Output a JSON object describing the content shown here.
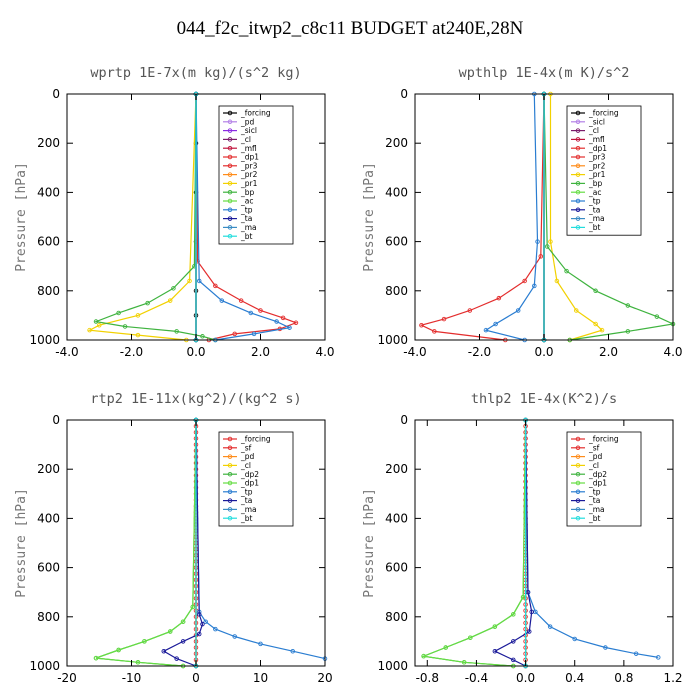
{
  "title": "044_f2c_itwp2_c8c11  BUDGET at240E,28N",
  "colors": {
    "black": "#000000",
    "violet": "#b380e6",
    "purple": "#8a2be2",
    "darkpurple": "#7b1d6b",
    "crimson": "#c0143c",
    "red": "#e32d2d",
    "orange": "#ff8c1a",
    "yellow": "#f2d100",
    "green": "#3fb33f",
    "lime": "#66dd44",
    "blue": "#2a7dd1",
    "navy": "#1a1a99",
    "steel": "#3a8cc4",
    "cyan": "#22dddd"
  },
  "chart_data": [
    {
      "type": "line",
      "title": "wprtp  1E-7x(m kg)/(s^2 kg)",
      "ylabel": "Pressure [hPa]",
      "xlim": [
        -4.0,
        4.0
      ],
      "ylim": [
        1000,
        0
      ],
      "xticks": [
        -4.0,
        -2.0,
        0.0,
        2.0,
        4.0
      ],
      "xtick_labels": [
        "-4.0",
        "-2.0",
        "0.0",
        "2.0",
        "4.0"
      ],
      "yticks": [
        0,
        200,
        400,
        600,
        800,
        1000
      ],
      "ytick_labels": [
        "0",
        "200",
        "400",
        "600",
        "800",
        "1000"
      ],
      "legend_position": "upper-right",
      "series": [
        {
          "name": "_forcing",
          "color": "black",
          "x": [
            0,
            0,
            0,
            0,
            0,
            0,
            0
          ],
          "y": [
            0,
            200,
            400,
            600,
            800,
            900,
            1000
          ]
        },
        {
          "name": "_pd",
          "color": "violet",
          "x": [
            0,
            0
          ],
          "y": [
            0,
            1000
          ]
        },
        {
          "name": "_sicl",
          "color": "purple",
          "x": [
            0,
            0
          ],
          "y": [
            0,
            1000
          ]
        },
        {
          "name": "_cl",
          "color": "darkpurple",
          "x": [
            0,
            0
          ],
          "y": [
            0,
            1000
          ]
        },
        {
          "name": "_mfl",
          "color": "crimson",
          "x": [
            0,
            0
          ],
          "y": [
            0,
            1000
          ]
        },
        {
          "name": "_dp1",
          "color": "red",
          "x": [
            0,
            0.05,
            0.6,
            1.4,
            2.0,
            2.7,
            3.1,
            2.6,
            1.2,
            0.4
          ],
          "y": [
            0,
            680,
            780,
            840,
            880,
            910,
            930,
            955,
            975,
            1000
          ]
        },
        {
          "name": "_pr3",
          "color": "red",
          "x": [
            0,
            0
          ],
          "y": [
            0,
            1000
          ]
        },
        {
          "name": "_pr2",
          "color": "orange",
          "x": [
            0,
            0
          ],
          "y": [
            0,
            1000
          ]
        },
        {
          "name": "_pr1",
          "color": "yellow",
          "x": [
            0,
            -0.2,
            -0.8,
            -1.8,
            -3.0,
            -3.3,
            -1.8,
            -0.3
          ],
          "y": [
            0,
            760,
            840,
            900,
            940,
            960,
            980,
            1000
          ]
        },
        {
          "name": "_bp",
          "color": "green",
          "x": [
            0,
            -0.05,
            -0.7,
            -1.5,
            -2.4,
            -3.1,
            -2.2,
            -0.6,
            0.2,
            0.6
          ],
          "y": [
            0,
            700,
            790,
            850,
            890,
            925,
            945,
            965,
            985,
            1000
          ]
        },
        {
          "name": "_ac",
          "color": "lime",
          "x": [
            0,
            0
          ],
          "y": [
            0,
            1000
          ]
        },
        {
          "name": "_tp",
          "color": "blue",
          "x": [
            0,
            0.1,
            0.8,
            1.7,
            2.5,
            2.9,
            1.8,
            0.6
          ],
          "y": [
            0,
            760,
            840,
            890,
            925,
            950,
            975,
            1000
          ]
        },
        {
          "name": "_ta",
          "color": "navy",
          "x": [
            0,
            0
          ],
          "y": [
            0,
            1000
          ]
        },
        {
          "name": "_ma",
          "color": "steel",
          "x": [
            0,
            0
          ],
          "y": [
            0,
            1000
          ]
        },
        {
          "name": "_bt",
          "color": "cyan",
          "x": [
            0,
            0
          ],
          "y": [
            0,
            1000
          ]
        }
      ]
    },
    {
      "type": "line",
      "title": "wpthlp  1E-4x(m K)/s^2",
      "ylabel": "Pressure [hPa]",
      "xlim": [
        -4.0,
        4.0
      ],
      "ylim": [
        1000,
        0
      ],
      "xticks": [
        -4.0,
        -2.0,
        0.0,
        2.0,
        4.0
      ],
      "xtick_labels": [
        "-4.0",
        "-2.0",
        "0.0",
        "2.0",
        "4.0"
      ],
      "yticks": [
        0,
        200,
        400,
        600,
        800,
        1000
      ],
      "ytick_labels": [
        "0",
        "200",
        "400",
        "600",
        "800",
        "1000"
      ],
      "legend_position": "upper-right",
      "series": [
        {
          "name": "_forcing",
          "color": "black",
          "x": [
            0,
            0
          ],
          "y": [
            0,
            1000
          ]
        },
        {
          "name": "_sicl",
          "color": "violet",
          "x": [
            0,
            0
          ],
          "y": [
            0,
            1000
          ]
        },
        {
          "name": "_cl",
          "color": "darkpurple",
          "x": [
            0,
            0
          ],
          "y": [
            0,
            1000
          ]
        },
        {
          "name": "_mfl",
          "color": "crimson",
          "x": [
            0,
            0
          ],
          "y": [
            0,
            1000
          ]
        },
        {
          "name": "_dp1",
          "color": "red",
          "x": [
            0,
            -0.1,
            -0.6,
            -1.4,
            -2.3,
            -3.1,
            -3.8,
            -3.4,
            -1.2
          ],
          "y": [
            0,
            660,
            760,
            830,
            880,
            915,
            940,
            965,
            1000
          ]
        },
        {
          "name": "_pr3",
          "color": "red",
          "x": [
            0,
            0
          ],
          "y": [
            0,
            1000
          ]
        },
        {
          "name": "_pr2",
          "color": "orange",
          "x": [
            0,
            0
          ],
          "y": [
            0,
            1000
          ]
        },
        {
          "name": "_pr1",
          "color": "yellow",
          "x": [
            0.2,
            0.2,
            0.4,
            1.0,
            1.6,
            1.8,
            0.8
          ],
          "y": [
            0,
            600,
            760,
            880,
            935,
            960,
            1000
          ]
        },
        {
          "name": "_bp",
          "color": "green",
          "x": [
            0,
            0.1,
            0.7,
            1.6,
            2.6,
            3.5,
            4.0,
            2.6,
            0.8
          ],
          "y": [
            0,
            620,
            720,
            800,
            860,
            905,
            935,
            965,
            1000
          ]
        },
        {
          "name": "_ac",
          "color": "lime",
          "x": [
            0,
            0
          ],
          "y": [
            0,
            1000
          ]
        },
        {
          "name": "_tp",
          "color": "blue",
          "x": [
            -0.3,
            -0.2,
            -0.3,
            -0.8,
            -1.5,
            -1.8,
            -0.6
          ],
          "y": [
            0,
            600,
            780,
            880,
            935,
            960,
            1000
          ]
        },
        {
          "name": "_ta",
          "color": "navy",
          "x": [
            0,
            0
          ],
          "y": [
            0,
            1000
          ]
        },
        {
          "name": "_ma",
          "color": "steel",
          "x": [
            0,
            0
          ],
          "y": [
            0,
            1000
          ]
        },
        {
          "name": "_bt",
          "color": "cyan",
          "x": [
            0,
            0
          ],
          "y": [
            0,
            1000
          ]
        }
      ]
    },
    {
      "type": "line",
      "title": "rtp2  1E-11x(kg^2)/(kg^2 s)",
      "ylabel": "Pressure [hPa]",
      "xlim": [
        -20,
        20
      ],
      "ylim": [
        1000,
        0
      ],
      "xticks": [
        -20,
        -10,
        0,
        10,
        20
      ],
      "xtick_labels": [
        "-20",
        "-10",
        "0",
        "10",
        "20"
      ],
      "yticks": [
        0,
        200,
        400,
        600,
        800,
        1000
      ],
      "ytick_labels": [
        "0",
        "200",
        "400",
        "600",
        "800",
        "1000"
      ],
      "legend_position": "upper-right",
      "series": [
        {
          "name": "_forcing",
          "color": "red",
          "x": [
            0,
            0
          ],
          "y": [
            0,
            1000
          ]
        },
        {
          "name": "_sf",
          "color": "red",
          "x": [
            0,
            0,
            0,
            0,
            0,
            0,
            0,
            0,
            0,
            0,
            0,
            0,
            0,
            0,
            0,
            0,
            0,
            0,
            0,
            0,
            0,
            0,
            0,
            0,
            0,
            0,
            0,
            0,
            0,
            0,
            0,
            0,
            0,
            0,
            0,
            0,
            0,
            0,
            0,
            0,
            0
          ],
          "y": [
            0,
            25,
            50,
            75,
            100,
            125,
            150,
            175,
            200,
            225,
            250,
            275,
            300,
            325,
            350,
            375,
            400,
            425,
            450,
            475,
            500,
            525,
            550,
            575,
            600,
            625,
            650,
            675,
            700,
            725,
            750,
            775,
            800,
            825,
            850,
            875,
            900,
            925,
            950,
            975,
            1000
          ]
        },
        {
          "name": "_pd",
          "color": "orange",
          "x": [
            0,
            0
          ],
          "y": [
            0,
            1000
          ]
        },
        {
          "name": "_cl",
          "color": "yellow",
          "x": [
            0,
            0
          ],
          "y": [
            0,
            1000
          ]
        },
        {
          "name": "_dp2",
          "color": "green",
          "x": [
            0,
            -0.5,
            -2,
            -4,
            -8,
            -12,
            -15.5,
            -9,
            -2
          ],
          "y": [
            0,
            760,
            820,
            860,
            900,
            935,
            968,
            985,
            1000
          ]
        },
        {
          "name": "_dp1",
          "color": "lime",
          "x": [
            0,
            -0.5,
            -2,
            -4,
            -8,
            -12,
            -15.5,
            -9,
            -2
          ],
          "y": [
            0,
            760,
            820,
            860,
            900,
            935,
            968,
            985,
            1000
          ]
        },
        {
          "name": "_tp",
          "color": "blue",
          "x": [
            0,
            0.5,
            1.5,
            3,
            6,
            10,
            15,
            20
          ],
          "y": [
            0,
            780,
            820,
            850,
            880,
            910,
            940,
            970
          ]
        },
        {
          "name": "_ta",
          "color": "navy",
          "x": [
            0,
            0.5,
            1.0,
            0.5,
            -2,
            -5,
            -3,
            0
          ],
          "y": [
            0,
            790,
            830,
            870,
            900,
            940,
            970,
            1000
          ]
        },
        {
          "name": "_ma",
          "color": "steel",
          "x": [
            0,
            0
          ],
          "y": [
            0,
            1000
          ]
        },
        {
          "name": "_bt",
          "color": "cyan",
          "x": [
            0,
            0
          ],
          "y": [
            0,
            1000
          ]
        }
      ]
    },
    {
      "type": "line",
      "title": "thlp2  1E-4x(K^2)/s",
      "ylabel": "Pressure [hPa]",
      "xlim": [
        -0.9,
        1.2
      ],
      "ylim": [
        1000,
        0
      ],
      "xticks": [
        -0.8,
        -0.4,
        0.0,
        0.4,
        0.8,
        1.2
      ],
      "xtick_labels": [
        "-0.8",
        "-0.4",
        "0.0",
        "0.4",
        "0.8",
        "1.2"
      ],
      "yticks": [
        0,
        200,
        400,
        600,
        800,
        1000
      ],
      "ytick_labels": [
        "0",
        "200",
        "400",
        "600",
        "800",
        "1000"
      ],
      "legend_position": "upper-right",
      "series": [
        {
          "name": "_forcing",
          "color": "red",
          "x": [
            0,
            0
          ],
          "y": [
            0,
            1000
          ]
        },
        {
          "name": "_sf",
          "color": "red",
          "x": [
            0,
            0,
            0,
            0,
            0,
            0,
            0,
            0,
            0,
            0,
            0,
            0,
            0,
            0,
            0,
            0,
            0,
            0,
            0,
            0,
            0,
            0,
            0,
            0,
            0,
            0,
            0,
            0,
            0,
            0,
            0,
            0,
            0,
            0,
            0,
            0,
            0,
            0,
            0,
            0,
            0
          ],
          "y": [
            0,
            25,
            50,
            75,
            100,
            125,
            150,
            175,
            200,
            225,
            250,
            275,
            300,
            325,
            350,
            375,
            400,
            425,
            450,
            475,
            500,
            525,
            550,
            575,
            600,
            625,
            650,
            675,
            700,
            725,
            750,
            775,
            800,
            825,
            850,
            875,
            900,
            925,
            950,
            975,
            1000
          ]
        },
        {
          "name": "_pd",
          "color": "orange",
          "x": [
            0,
            0
          ],
          "y": [
            0,
            1000
          ]
        },
        {
          "name": "_cl",
          "color": "yellow",
          "x": [
            0,
            0
          ],
          "y": [
            0,
            1000
          ]
        },
        {
          "name": "_dp2",
          "color": "green",
          "x": [
            0,
            -0.02,
            -0.1,
            -0.25,
            -0.45,
            -0.65,
            -0.83,
            -0.5,
            -0.1
          ],
          "y": [
            0,
            720,
            790,
            840,
            885,
            925,
            960,
            985,
            1000
          ]
        },
        {
          "name": "_dp1",
          "color": "lime",
          "x": [
            0,
            -0.02,
            -0.1,
            -0.25,
            -0.45,
            -0.65,
            -0.83,
            -0.5,
            -0.1
          ],
          "y": [
            0,
            720,
            790,
            840,
            885,
            925,
            960,
            985,
            1000
          ]
        },
        {
          "name": "_tp",
          "color": "blue",
          "x": [
            0,
            0.02,
            0.08,
            0.2,
            0.4,
            0.65,
            0.9,
            1.08
          ],
          "y": [
            0,
            700,
            780,
            840,
            890,
            925,
            950,
            965
          ]
        },
        {
          "name": "_ta",
          "color": "navy",
          "x": [
            0,
            0.02,
            0.05,
            0.03,
            -0.1,
            -0.25,
            -0.1,
            0
          ],
          "y": [
            0,
            700,
            780,
            860,
            900,
            940,
            975,
            1000
          ]
        },
        {
          "name": "_ma",
          "color": "steel",
          "x": [
            0,
            0
          ],
          "y": [
            0,
            1000
          ]
        },
        {
          "name": "_bt",
          "color": "cyan",
          "x": [
            0,
            0
          ],
          "y": [
            0,
            1000
          ]
        }
      ]
    }
  ]
}
